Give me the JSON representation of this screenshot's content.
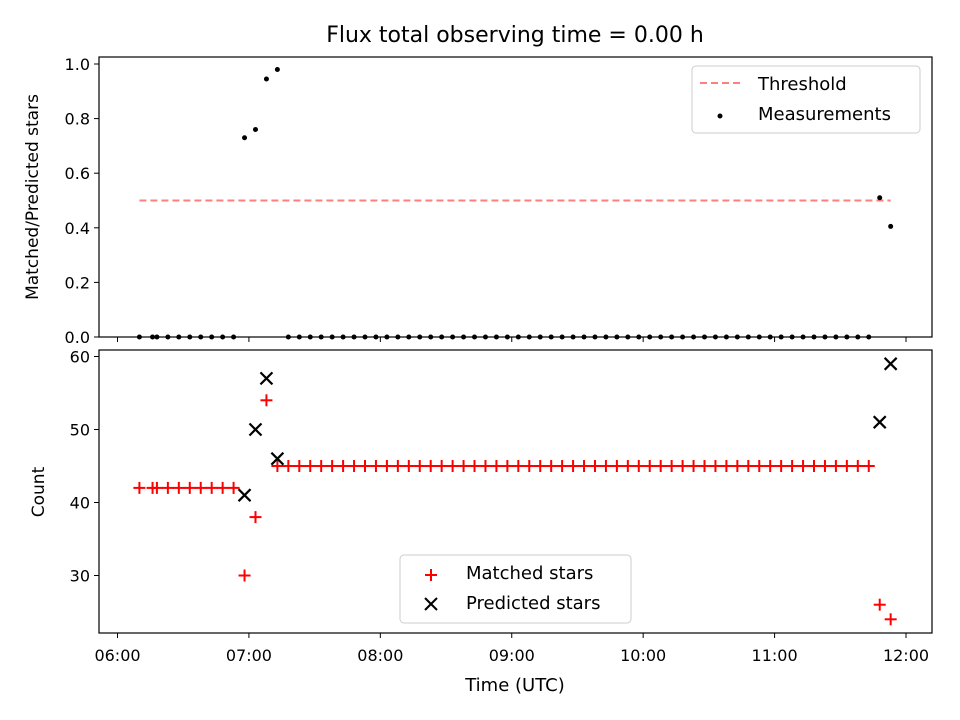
{
  "figure": {
    "title": "Flux total observing time = 0.00 h",
    "xlabel": "Time (UTC)"
  },
  "chart_data": [
    {
      "type": "scatter",
      "panel": "top",
      "ylabel": "Matched/Predicted stars",
      "xlim": [
        "06:00",
        "12:00"
      ],
      "ylim": [
        0,
        1.02
      ],
      "yticks": [
        0.0,
        0.2,
        0.4,
        0.6,
        0.8,
        1.0
      ],
      "ytick_labels": [
        "0.0",
        "0.2",
        "0.4",
        "0.6",
        "0.8",
        "1.0"
      ],
      "grid": false,
      "legend": {
        "position": "top-right",
        "entries": [
          "Threshold",
          "Measurements"
        ]
      },
      "series": [
        {
          "name": "Threshold",
          "kind": "dashed-line",
          "color": "#ff7f7f",
          "x": [
            "06:10",
            "11:53"
          ],
          "y": [
            0.5,
            0.5
          ]
        },
        {
          "name": "Measurements",
          "kind": "dots",
          "color": "#000000",
          "points": [
            [
              "06:10",
              0.0
            ],
            [
              "06:16",
              0.0
            ],
            [
              "06:18",
              0.0
            ],
            [
              "06:23",
              0.0
            ],
            [
              "06:28",
              0.0
            ],
            [
              "06:33",
              0.0
            ],
            [
              "06:38",
              0.0
            ],
            [
              "06:43",
              0.0
            ],
            [
              "06:48",
              0.0
            ],
            [
              "06:53",
              0.0
            ],
            [
              "06:58",
              0.73
            ],
            [
              "07:03",
              0.76
            ],
            [
              "07:08",
              0.945
            ],
            [
              "07:13",
              0.98
            ],
            [
              "07:18",
              0.0
            ],
            [
              "07:23",
              0.0
            ],
            [
              "07:28",
              0.0
            ],
            [
              "07:33",
              0.0
            ],
            [
              "07:38",
              0.0
            ],
            [
              "07:43",
              0.0
            ],
            [
              "07:48",
              0.0
            ],
            [
              "07:53",
              0.0
            ],
            [
              "07:58",
              0.0
            ],
            [
              "08:03",
              0.0
            ],
            [
              "08:08",
              0.0
            ],
            [
              "08:13",
              0.0
            ],
            [
              "08:18",
              0.0
            ],
            [
              "08:23",
              0.0
            ],
            [
              "08:28",
              0.0
            ],
            [
              "08:33",
              0.0
            ],
            [
              "08:38",
              0.0
            ],
            [
              "08:43",
              0.0
            ],
            [
              "08:48",
              0.0
            ],
            [
              "08:53",
              0.0
            ],
            [
              "08:58",
              0.0
            ],
            [
              "09:03",
              0.0
            ],
            [
              "09:08",
              0.0
            ],
            [
              "09:13",
              0.0
            ],
            [
              "09:18",
              0.0
            ],
            [
              "09:23",
              0.0
            ],
            [
              "09:28",
              0.0
            ],
            [
              "09:33",
              0.0
            ],
            [
              "09:38",
              0.0
            ],
            [
              "09:43",
              0.0
            ],
            [
              "09:48",
              0.0
            ],
            [
              "09:53",
              0.0
            ],
            [
              "09:58",
              0.0
            ],
            [
              "10:03",
              0.0
            ],
            [
              "10:08",
              0.0
            ],
            [
              "10:13",
              0.0
            ],
            [
              "10:18",
              0.0
            ],
            [
              "10:23",
              0.0
            ],
            [
              "10:28",
              0.0
            ],
            [
              "10:33",
              0.0
            ],
            [
              "10:38",
              0.0
            ],
            [
              "10:43",
              0.0
            ],
            [
              "10:48",
              0.0
            ],
            [
              "10:53",
              0.0
            ],
            [
              "10:58",
              0.0
            ],
            [
              "11:03",
              0.0
            ],
            [
              "11:08",
              0.0
            ],
            [
              "11:13",
              0.0
            ],
            [
              "11:18",
              0.0
            ],
            [
              "11:23",
              0.0
            ],
            [
              "11:28",
              0.0
            ],
            [
              "11:33",
              0.0
            ],
            [
              "11:38",
              0.0
            ],
            [
              "11:43",
              0.0
            ],
            [
              "11:48",
              0.51
            ],
            [
              "11:53",
              0.405
            ]
          ]
        }
      ]
    },
    {
      "type": "scatter",
      "panel": "bottom",
      "ylabel": "Count",
      "xlim": [
        "06:00",
        "12:00"
      ],
      "ylim": [
        22,
        61
      ],
      "yticks": [
        30,
        40,
        50,
        60
      ],
      "ytick_labels": [
        "30",
        "40",
        "50",
        "60"
      ],
      "xticks": [
        "06:00",
        "07:00",
        "08:00",
        "09:00",
        "10:00",
        "11:00",
        "12:00"
      ],
      "xtick_labels": [
        "06:00",
        "07:00",
        "08:00",
        "09:00",
        "10:00",
        "11:00",
        "12:00"
      ],
      "grid": false,
      "legend": {
        "position": "lower-center",
        "entries": [
          "Matched stars",
          "Predicted stars"
        ]
      },
      "series": [
        {
          "name": "Matched stars",
          "marker": "plus",
          "color": "#ff0000",
          "points": [
            [
              "06:10",
              42
            ],
            [
              "06:16",
              42
            ],
            [
              "06:18",
              42
            ],
            [
              "06:23",
              42
            ],
            [
              "06:28",
              42
            ],
            [
              "06:33",
              42
            ],
            [
              "06:38",
              42
            ],
            [
              "06:43",
              42
            ],
            [
              "06:48",
              42
            ],
            [
              "06:53",
              42
            ],
            [
              "06:58",
              30
            ],
            [
              "07:03",
              38
            ],
            [
              "07:08",
              54
            ],
            [
              "07:13",
              45
            ],
            [
              "07:18",
              45
            ],
            [
              "07:23",
              45
            ],
            [
              "07:28",
              45
            ],
            [
              "07:33",
              45
            ],
            [
              "07:38",
              45
            ],
            [
              "07:43",
              45
            ],
            [
              "07:48",
              45
            ],
            [
              "07:53",
              45
            ],
            [
              "07:58",
              45
            ],
            [
              "08:03",
              45
            ],
            [
              "08:08",
              45
            ],
            [
              "08:13",
              45
            ],
            [
              "08:18",
              45
            ],
            [
              "08:23",
              45
            ],
            [
              "08:28",
              45
            ],
            [
              "08:33",
              45
            ],
            [
              "08:38",
              45
            ],
            [
              "08:43",
              45
            ],
            [
              "08:48",
              45
            ],
            [
              "08:53",
              45
            ],
            [
              "08:58",
              45
            ],
            [
              "09:03",
              45
            ],
            [
              "09:08",
              45
            ],
            [
              "09:13",
              45
            ],
            [
              "09:18",
              45
            ],
            [
              "09:23",
              45
            ],
            [
              "09:28",
              45
            ],
            [
              "09:33",
              45
            ],
            [
              "09:38",
              45
            ],
            [
              "09:43",
              45
            ],
            [
              "09:48",
              45
            ],
            [
              "09:53",
              45
            ],
            [
              "09:58",
              45
            ],
            [
              "10:03",
              45
            ],
            [
              "10:08",
              45
            ],
            [
              "10:13",
              45
            ],
            [
              "10:18",
              45
            ],
            [
              "10:23",
              45
            ],
            [
              "10:28",
              45
            ],
            [
              "10:33",
              45
            ],
            [
              "10:38",
              45
            ],
            [
              "10:43",
              45
            ],
            [
              "10:48",
              45
            ],
            [
              "10:53",
              45
            ],
            [
              "10:58",
              45
            ],
            [
              "11:03",
              45
            ],
            [
              "11:08",
              45
            ],
            [
              "11:13",
              45
            ],
            [
              "11:18",
              45
            ],
            [
              "11:23",
              45
            ],
            [
              "11:28",
              45
            ],
            [
              "11:33",
              45
            ],
            [
              "11:38",
              45
            ],
            [
              "11:43",
              45
            ],
            [
              "11:48",
              26
            ],
            [
              "11:53",
              24
            ]
          ]
        },
        {
          "name": "Predicted stars",
          "marker": "x",
          "color": "#000000",
          "points": [
            [
              "06:58",
              41
            ],
            [
              "07:03",
              50
            ],
            [
              "07:08",
              57
            ],
            [
              "07:13",
              46
            ],
            [
              "11:48",
              51
            ],
            [
              "11:53",
              59
            ]
          ]
        }
      ]
    }
  ]
}
